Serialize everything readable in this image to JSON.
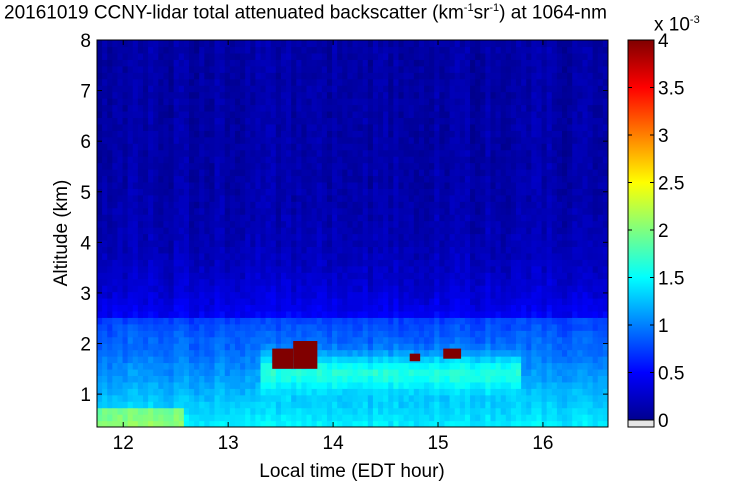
{
  "chart_data": {
    "type": "heatmap",
    "title": {
      "prefix": "20161019 CCNY-lidar total attenuated backscatter (km",
      "exp1": "-1",
      "mid": "sr",
      "exp2": "-1",
      "suffix": ") at 1064-nm"
    },
    "xlabel": "Local time (EDT hour)",
    "ylabel": "Altitude (km)",
    "xlim": [
      11.75,
      16.62
    ],
    "ylim": [
      0.35,
      8
    ],
    "xticks": [
      "12",
      "13",
      "14",
      "15",
      "16"
    ],
    "yticks": [
      "1",
      "2",
      "3",
      "4",
      "5",
      "6",
      "7",
      "8"
    ],
    "colorbar": {
      "min": 0,
      "max": 4,
      "ticks": [
        "0",
        "0.5",
        "1",
        "1.5",
        "2",
        "2.5",
        "3",
        "3.5",
        "4"
      ],
      "multiplier_base": "x 10",
      "multiplier_exp": "-3",
      "colormap": "jet"
    },
    "layers": {
      "free_troposphere_value": 0.15,
      "residual_layer_top_km": 2.5,
      "pbl_top_km": 1.95,
      "cloud_value": 4.0
    },
    "cloud_patches": [
      {
        "x_from": 13.42,
        "x_to": 13.62,
        "y_from": 1.5,
        "y_to": 1.9
      },
      {
        "x_from": 13.62,
        "x_to": 13.85,
        "y_from": 1.5,
        "y_to": 2.05
      },
      {
        "x_from": 14.73,
        "x_to": 14.83,
        "y_from": 1.65,
        "y_to": 1.8
      },
      {
        "x_from": 15.05,
        "x_to": 15.22,
        "y_from": 1.7,
        "y_to": 1.9
      }
    ]
  }
}
